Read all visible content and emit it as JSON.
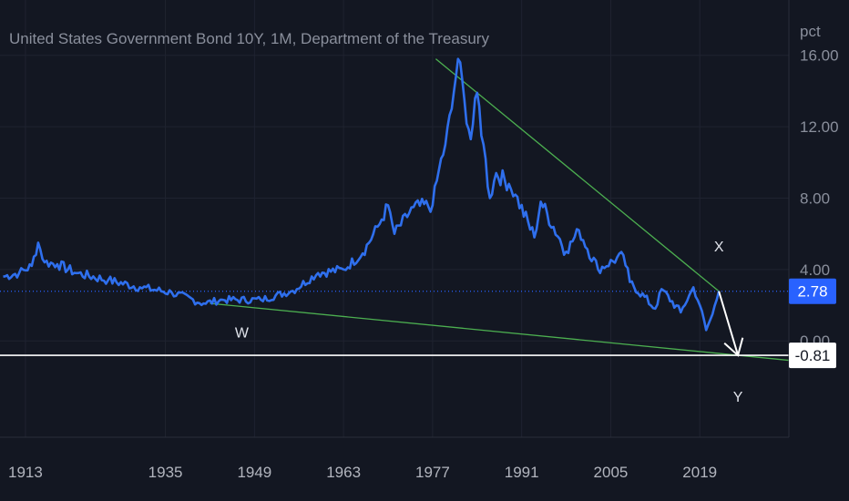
{
  "chart_data": {
    "type": "line",
    "title": "United States Government Bond 10Y, 1M, Department of the Treasury",
    "y_unit": "pct",
    "x_ticks": [
      "1913",
      "1935",
      "1949",
      "1963",
      "1977",
      "1991",
      "2005",
      "2019"
    ],
    "x_range": [
      1909,
      2033
    ],
    "y_ticks": [
      0.0,
      4.0,
      8.0,
      12.0,
      16.0
    ],
    "y_tick_labels": [
      "0.00",
      "4.00",
      "8.00",
      "12.00",
      "16.00"
    ],
    "ylim": [
      -5.4,
      19.1
    ],
    "grid": true,
    "series": [
      {
        "color": "#2f6fed",
        "x": [
          1909.5,
          1912,
          1914,
          1915,
          1916,
          1918,
          1921,
          1926,
          1931,
          1936,
          1941,
          1944,
          1950,
          1955,
          1959,
          1963,
          1966,
          1969,
          1970,
          1971,
          1974,
          1977,
          1978,
          1979,
          1980,
          1981,
          1982,
          1983,
          1984,
          1985,
          1986,
          1987,
          1989,
          1990,
          1993,
          1994,
          1998,
          2000,
          2003,
          2007,
          2008,
          2012,
          2013,
          2016,
          2018,
          2019,
          2020,
          2021,
          2022
        ],
        "y": [
          3.6,
          3.8,
          4.2,
          5.5,
          4.4,
          4.3,
          3.8,
          3.4,
          3.0,
          2.7,
          2.1,
          2.3,
          2.3,
          2.8,
          3.8,
          4.0,
          4.9,
          6.8,
          7.6,
          6.0,
          7.5,
          7.6,
          9.6,
          11.0,
          13.0,
          15.8,
          13.5,
          11.3,
          13.9,
          11.0,
          8.0,
          9.4,
          8.8,
          8.2,
          5.8,
          7.8,
          5.0,
          6.2,
          4.0,
          4.8,
          3.3,
          1.8,
          2.9,
          1.6,
          3.0,
          2.0,
          0.6,
          1.5,
          2.78
        ]
      }
    ],
    "trendlines": [
      {
        "color": "#4caf50",
        "x": [
          1977.5,
          2022
        ],
        "y": [
          15.8,
          2.78
        ]
      },
      {
        "color": "#4caf50",
        "x": [
          1942,
          2025
        ],
        "y": [
          2.1,
          -0.81
        ],
        "extend_right": true
      }
    ],
    "horizontal_lines": [
      {
        "value": 2.78,
        "label": "2.78",
        "color": "#2962ff",
        "style": "dotted"
      },
      {
        "value": -0.81,
        "label": "-0.81",
        "color": "#ffffff",
        "style": "solid"
      }
    ],
    "annotations": [
      {
        "text": "W",
        "x": 1947,
        "y": 0.2
      },
      {
        "text": "X",
        "x": 2022,
        "y": 5.0
      },
      {
        "text": "Y",
        "x": 2025,
        "y": -3.4
      }
    ],
    "arrow": {
      "color": "#ffffff",
      "from": [
        2022,
        2.78
      ],
      "to": [
        2025,
        -0.81
      ]
    }
  }
}
